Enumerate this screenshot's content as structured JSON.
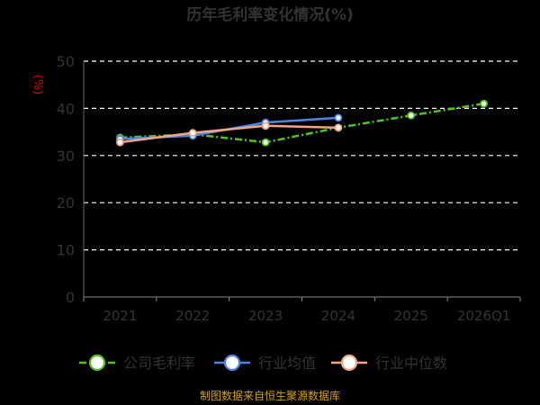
{
  "chart_data": {
    "type": "line",
    "title": "历年毛利率变化情况(%)",
    "ylabel": "(%)",
    "xlabel": "",
    "categories": [
      "2021",
      "2022",
      "2023",
      "2024",
      "2025",
      "2026Q1"
    ],
    "y_ticks": [
      "0",
      "10",
      "20",
      "30",
      "40",
      "50"
    ],
    "ylim": [
      0,
      50
    ],
    "grid": true,
    "legend_position": "bottom",
    "series": [
      {
        "name": "公司毛利率",
        "color": "#52c41a",
        "line_style": "dash-dot",
        "values": [
          33.8,
          34.5,
          32.8,
          35.9,
          38.5,
          41.0
        ]
      },
      {
        "name": "行业均值",
        "color": "#4a86e8",
        "line_style": "solid",
        "values": [
          33.5,
          34.2,
          37.0,
          38.0,
          null,
          null
        ]
      },
      {
        "name": "行业中位数",
        "color": "#f4a582",
        "line_style": "solid",
        "values": [
          32.8,
          34.8,
          36.3,
          35.9,
          null,
          null
        ]
      }
    ],
    "footer": "制图数据来自恒生聚源数据库"
  }
}
